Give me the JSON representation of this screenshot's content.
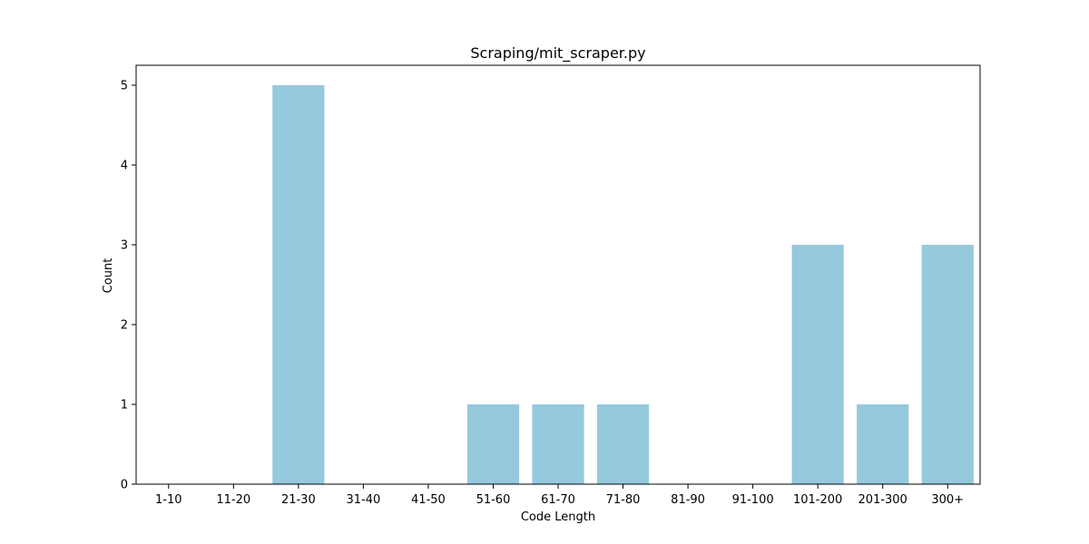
{
  "chart_data": {
    "type": "bar",
    "title": "Scraping/mit_scraper.py",
    "xlabel": "Code Length",
    "ylabel": "Count",
    "categories": [
      "1-10",
      "11-20",
      "21-30",
      "31-40",
      "41-50",
      "51-60",
      "61-70",
      "71-80",
      "81-90",
      "91-100",
      "101-200",
      "201-300",
      "300+"
    ],
    "values": [
      0,
      0,
      5,
      0,
      0,
      1,
      1,
      1,
      0,
      0,
      3,
      1,
      3
    ],
    "ylim": [
      0,
      5.25
    ],
    "yticks": [
      0,
      1,
      2,
      3,
      4,
      5
    ],
    "grid": false,
    "legend": "none",
    "bar_color": "#95c9de"
  }
}
